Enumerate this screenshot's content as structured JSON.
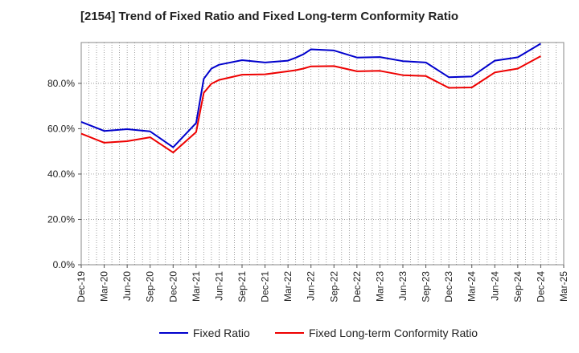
{
  "chart_data": {
    "type": "line",
    "title": "[2154]  Trend of Fixed Ratio and Fixed Long-term Conformity Ratio",
    "xlabel": "",
    "ylabel": "",
    "ylim": [
      0,
      98
    ],
    "y_ticks": [
      0,
      20,
      40,
      60,
      80
    ],
    "y_tick_labels": [
      "0.0%",
      "20.0%",
      "40.0%",
      "60.0%",
      "80.0%"
    ],
    "x_tick_labels": [
      "Dec-19",
      "Mar-20",
      "Jun-20",
      "Sep-20",
      "Dec-20",
      "Mar-21",
      "Jun-21",
      "Sep-21",
      "Dec-21",
      "Mar-22",
      "Jun-22",
      "Sep-22",
      "Dec-22",
      "Mar-23",
      "Jun-23",
      "Sep-23",
      "Dec-23",
      "Mar-24",
      "Jun-24",
      "Sep-24",
      "Dec-24",
      "Mar-25"
    ],
    "grid": true,
    "legend": "bottom",
    "series": [
      {
        "name": "Fixed Ratio",
        "color": "#0000cc",
        "points": [
          [
            "Dec-19",
            63.0
          ],
          [
            "Mar-20",
            59.0
          ],
          [
            "Jun-20",
            59.8
          ],
          [
            "Sep-20",
            58.8
          ],
          [
            "Dec-20",
            51.8
          ],
          [
            "Mar-21",
            62.5
          ],
          [
            "Apr-21",
            82.0
          ],
          [
            "May-21",
            86.5
          ],
          [
            "Jun-21",
            88.2
          ],
          [
            "Sep-21",
            90.2
          ],
          [
            "Dec-21",
            89.2
          ],
          [
            "Mar-22",
            90.0
          ],
          [
            "Apr-22",
            91.3
          ],
          [
            "May-22",
            92.8
          ],
          [
            "Jun-22",
            95.0
          ],
          [
            "Sep-22",
            94.5
          ],
          [
            "Dec-22",
            91.4
          ],
          [
            "Mar-23",
            91.6
          ],
          [
            "Jun-23",
            89.8
          ],
          [
            "Sep-23",
            89.2
          ],
          [
            "Dec-23",
            82.7
          ],
          [
            "Mar-24",
            83.0
          ],
          [
            "Jun-24",
            90.0
          ],
          [
            "Sep-24",
            91.5
          ],
          [
            "Dec-24",
            97.5
          ]
        ]
      },
      {
        "name": "Fixed Long-term Conformity Ratio",
        "color": "#ee0000",
        "points": [
          [
            "Dec-19",
            57.8
          ],
          [
            "Mar-20",
            53.8
          ],
          [
            "Jun-20",
            54.5
          ],
          [
            "Sep-20",
            56.2
          ],
          [
            "Dec-20",
            49.5
          ],
          [
            "Mar-21",
            58.5
          ],
          [
            "Apr-21",
            75.8
          ],
          [
            "May-21",
            79.8
          ],
          [
            "Jun-21",
            81.5
          ],
          [
            "Sep-21",
            83.8
          ],
          [
            "Dec-21",
            84.0
          ],
          [
            "Mar-22",
            85.3
          ],
          [
            "Apr-22",
            85.8
          ],
          [
            "May-22",
            86.5
          ],
          [
            "Jun-22",
            87.5
          ],
          [
            "Sep-22",
            87.6
          ],
          [
            "Dec-22",
            85.3
          ],
          [
            "Mar-23",
            85.5
          ],
          [
            "Jun-23",
            83.6
          ],
          [
            "Sep-23",
            83.2
          ],
          [
            "Dec-23",
            78.0
          ],
          [
            "Mar-24",
            78.2
          ],
          [
            "Jun-24",
            84.8
          ],
          [
            "Sep-24",
            86.5
          ],
          [
            "Dec-24",
            92.0
          ]
        ]
      }
    ]
  }
}
